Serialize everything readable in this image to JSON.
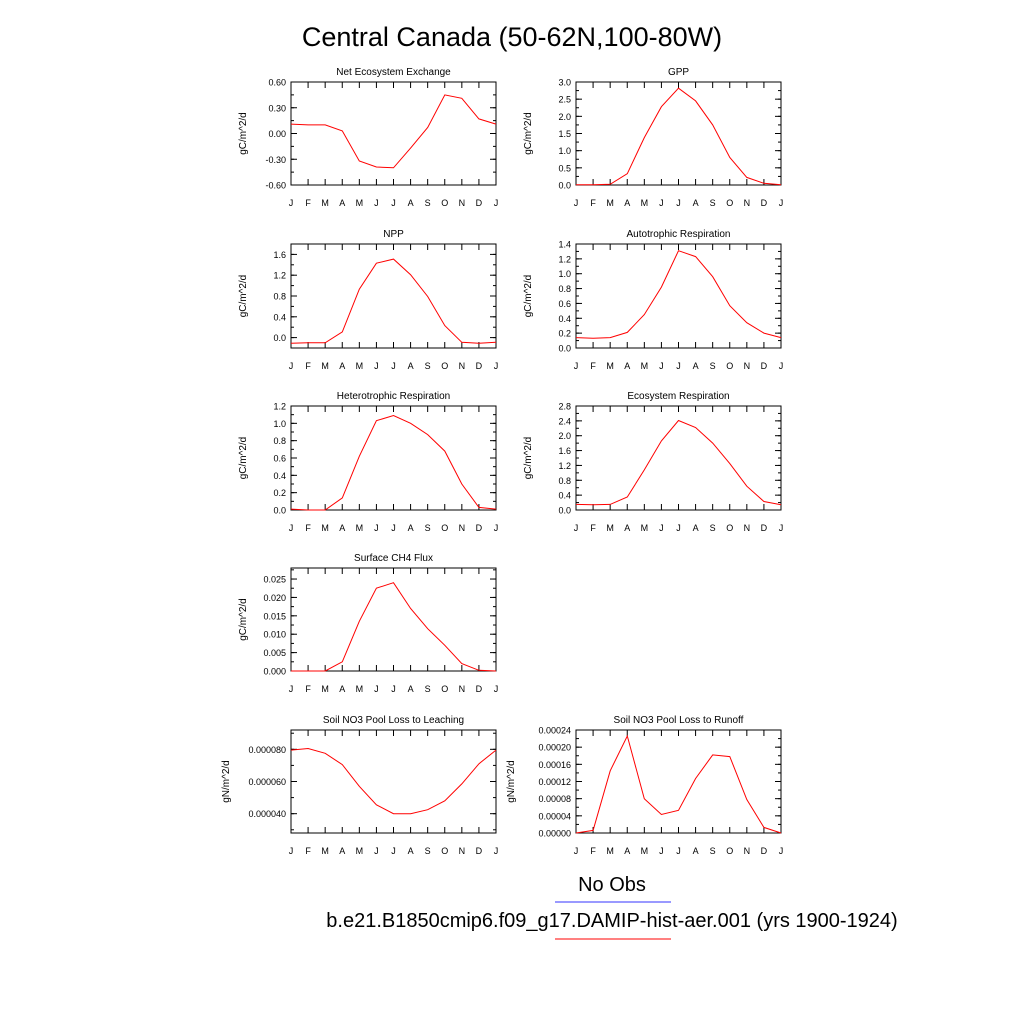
{
  "title": "Central Canada (50-62N,100-80W)",
  "months": [
    "J",
    "F",
    "M",
    "A",
    "M",
    "J",
    "J",
    "A",
    "S",
    "O",
    "N",
    "D",
    "J"
  ],
  "colors": {
    "model": "#ff0000",
    "obs": "#3333ff",
    "axis": "#000000"
  },
  "legend": {
    "obs_label": "No Obs",
    "model_label": "b.e21.B1850cmip6.f09_g17.DAMIP-hist-aer.001 (yrs 1900-1924)"
  },
  "chart_data": [
    {
      "type": "line",
      "title": "Net Ecosystem Exchange",
      "ylabel": "gC/m^2/d",
      "ylim": [
        -0.6,
        0.6
      ],
      "yticks": [
        -0.6,
        -0.3,
        0.0,
        0.3,
        0.6
      ],
      "decimals": 2,
      "values": [
        0.11,
        0.1,
        0.1,
        0.03,
        -0.32,
        -0.39,
        -0.4,
        -0.17,
        0.07,
        0.45,
        0.41,
        0.17,
        0.11
      ]
    },
    {
      "type": "line",
      "title": "GPP",
      "ylabel": "gC/m^2/d",
      "ylim": [
        0.0,
        3.0
      ],
      "yticks": [
        0.0,
        0.5,
        1.0,
        1.5,
        2.0,
        2.5,
        3.0
      ],
      "decimals": 1,
      "values": [
        0.01,
        0.01,
        0.02,
        0.33,
        1.38,
        2.28,
        2.82,
        2.45,
        1.75,
        0.8,
        0.22,
        0.05,
        0.01
      ]
    },
    {
      "type": "line",
      "title": "NPP",
      "ylabel": "gC/m^2/d",
      "ylim": [
        -0.2,
        1.8
      ],
      "yticks": [
        0.0,
        0.4,
        0.8,
        1.2,
        1.6
      ],
      "decimals": 1,
      "values": [
        -0.11,
        -0.1,
        -0.1,
        0.11,
        0.93,
        1.43,
        1.51,
        1.21,
        0.79,
        0.23,
        -0.09,
        -0.11,
        -0.09
      ]
    },
    {
      "type": "line",
      "title": "Autotrophic Respiration",
      "ylabel": "gC/m^2/d",
      "ylim": [
        0.0,
        1.4
      ],
      "yticks": [
        0.0,
        0.2,
        0.4,
        0.6,
        0.8,
        1.0,
        1.2,
        1.4
      ],
      "decimals": 1,
      "values": [
        0.14,
        0.13,
        0.14,
        0.21,
        0.45,
        0.82,
        1.31,
        1.23,
        0.96,
        0.57,
        0.34,
        0.2,
        0.14
      ]
    },
    {
      "type": "line",
      "title": "Heterotrophic Respiration",
      "ylabel": "gC/m^2/d",
      "ylim": [
        0.0,
        1.2
      ],
      "yticks": [
        0.0,
        0.2,
        0.4,
        0.6,
        0.8,
        1.0,
        1.2
      ],
      "decimals": 1,
      "values": [
        0.01,
        0.0,
        0.0,
        0.14,
        0.62,
        1.03,
        1.09,
        1.0,
        0.87,
        0.68,
        0.3,
        0.03,
        0.01
      ]
    },
    {
      "type": "line",
      "title": "Ecosystem Respiration",
      "ylabel": "gC/m^2/d",
      "ylim": [
        0.0,
        2.8
      ],
      "yticks": [
        0.0,
        0.4,
        0.8,
        1.2,
        1.6,
        2.0,
        2.4,
        2.8
      ],
      "decimals": 1,
      "values": [
        0.15,
        0.14,
        0.15,
        0.35,
        1.08,
        1.86,
        2.41,
        2.22,
        1.8,
        1.25,
        0.64,
        0.23,
        0.14
      ]
    },
    {
      "type": "line",
      "title": "Surface CH4 Flux",
      "ylabel": "gC/m^2/d",
      "ylim": [
        0.0,
        0.028
      ],
      "yticks": [
        0.0,
        0.005,
        0.01,
        0.015,
        0.02,
        0.025
      ],
      "decimals": 3,
      "values": [
        0.0,
        0.0,
        0.0,
        0.0025,
        0.0135,
        0.0225,
        0.024,
        0.017,
        0.0115,
        0.007,
        0.002,
        0.0002,
        0.0
      ]
    },
    null,
    {
      "type": "line",
      "title": "Soil NO3 Pool Loss to Leaching",
      "ylabel": "gN/m^2/d",
      "ylim": [
        2.8e-05,
        9.2e-05
      ],
      "yticks": [
        4e-05,
        6e-05,
        8e-05
      ],
      "decimals": 6,
      "values": [
        7.95e-05,
        8.05e-05,
        7.75e-05,
        7.05e-05,
        5.7e-05,
        4.55e-05,
        4e-05,
        4e-05,
        4.25e-05,
        4.8e-05,
        5.85e-05,
        7.1e-05,
        7.95e-05
      ]
    },
    {
      "type": "line",
      "title": "Soil NO3 Pool Loss to Runoff",
      "ylabel": "gN/m^2/d",
      "ylim": [
        0.0,
        0.00024
      ],
      "yticks": [
        0.0,
        4e-05,
        8e-05,
        0.00012,
        0.00016,
        0.0002,
        0.00024
      ],
      "decimals": 5,
      "values": [
        0.0,
        6e-06,
        0.000145,
        0.000226,
        8e-05,
        4.3e-05,
        5.3e-05,
        0.000127,
        0.000182,
        0.000178,
        7.8e-05,
        1.3e-05,
        0.0
      ]
    }
  ]
}
